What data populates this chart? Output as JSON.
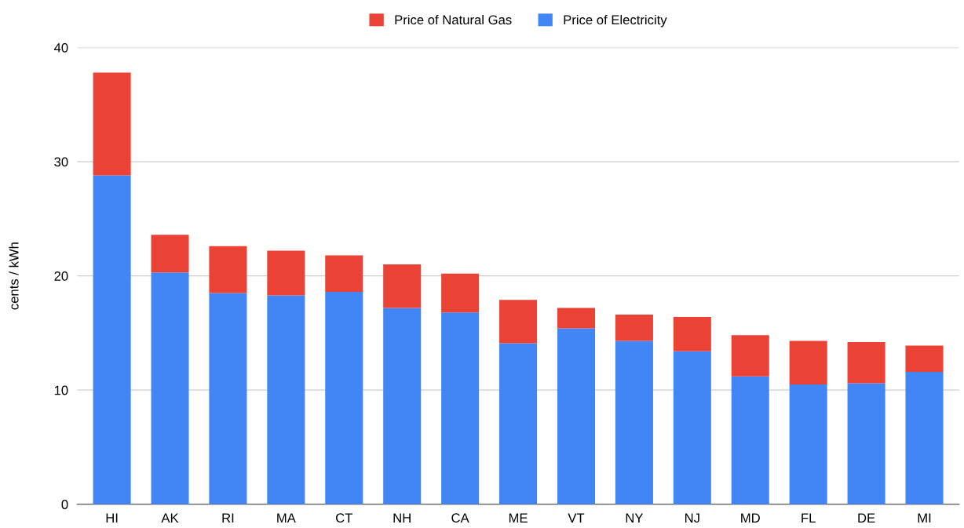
{
  "chart_data": {
    "type": "bar",
    "stacked": true,
    "ylabel": "cents / kWh",
    "categories": [
      "HI",
      "AK",
      "RI",
      "MA",
      "CT",
      "NH",
      "CA",
      "ME",
      "VT",
      "NY",
      "NJ",
      "MD",
      "FL",
      "DE",
      "MI"
    ],
    "series": [
      {
        "name": "Price of Electricity",
        "color": "#4285f4",
        "values": [
          28.8,
          20.3,
          18.5,
          18.3,
          18.6,
          17.2,
          16.8,
          14.1,
          15.4,
          14.3,
          13.4,
          11.2,
          10.5,
          10.6,
          11.6
        ]
      },
      {
        "name": "Price of Natural Gas",
        "color": "#ea4335",
        "values": [
          9.0,
          3.3,
          4.1,
          3.9,
          3.2,
          3.8,
          3.4,
          3.8,
          1.8,
          2.3,
          3.0,
          3.6,
          3.8,
          3.6,
          2.3
        ]
      }
    ],
    "ylim": [
      0,
      40
    ],
    "yticks": [
      0,
      10,
      20,
      30,
      40
    ],
    "grid": "y",
    "legend": "top"
  }
}
